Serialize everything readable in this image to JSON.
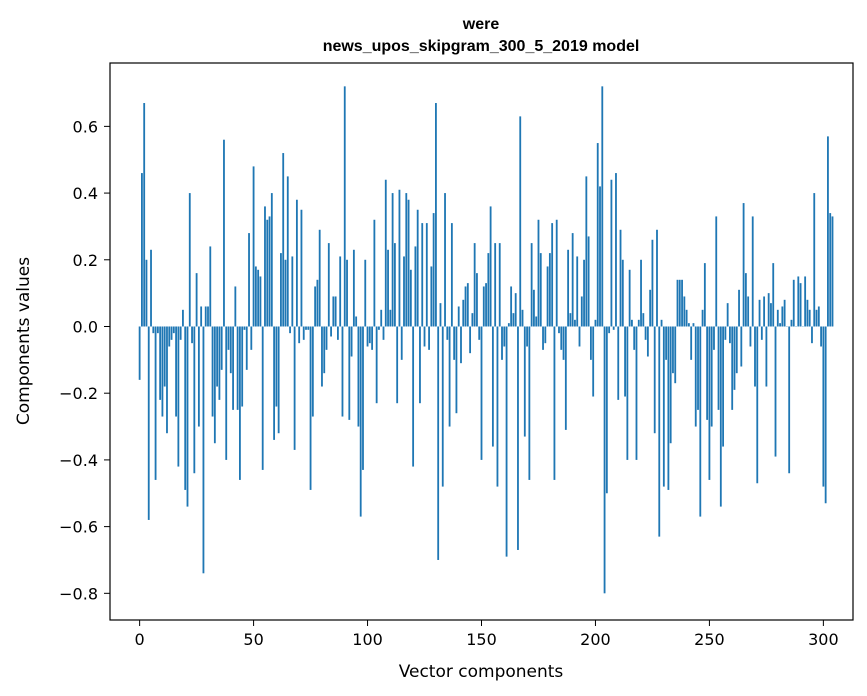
{
  "chart_data": {
    "type": "bar",
    "title_lines": [
      "were",
      "news_upos_skipgram_300_5_2019 model"
    ],
    "xlabel": "Vector components",
    "ylabel": "Components values",
    "xlim": [
      -13,
      313
    ],
    "ylim": [
      -0.88,
      0.79
    ],
    "xticks": [
      0,
      50,
      100,
      150,
      200,
      250,
      300
    ],
    "xtick_labels": [
      "0",
      "50",
      "100",
      "150",
      "200",
      "250",
      "300"
    ],
    "yticks": [
      -0.8,
      -0.6,
      -0.4,
      -0.2,
      0.0,
      0.2,
      0.4,
      0.6
    ],
    "ytick_labels": [
      "−0.8",
      "−0.6",
      "−0.4",
      "−0.2",
      "0.0",
      "0.2",
      "0.4",
      "0.6"
    ],
    "bar_color": "#1f77b4",
    "values": [
      -0.16,
      0.46,
      0.67,
      0.2,
      -0.58,
      0.23,
      -0.02,
      -0.46,
      -0.02,
      -0.22,
      -0.27,
      -0.18,
      -0.32,
      -0.06,
      -0.04,
      -0.02,
      -0.27,
      -0.42,
      -0.04,
      0.05,
      -0.49,
      -0.54,
      0.4,
      -0.05,
      -0.44,
      0.16,
      -0.3,
      0.06,
      -0.74,
      0.06,
      0.06,
      0.24,
      -0.27,
      -0.35,
      -0.18,
      -0.22,
      -0.13,
      0.56,
      -0.4,
      -0.07,
      -0.14,
      -0.25,
      0.12,
      -0.25,
      -0.46,
      -0.24,
      -0.01,
      -0.13,
      0.28,
      -0.07,
      0.48,
      0.18,
      0.17,
      0.15,
      -0.43,
      0.36,
      0.32,
      0.33,
      0.4,
      -0.34,
      -0.24,
      -0.32,
      0.22,
      0.52,
      0.2,
      0.45,
      -0.02,
      0.21,
      -0.37,
      0.38,
      -0.05,
      0.35,
      -0.04,
      -0.01,
      -0.01,
      -0.49,
      -0.27,
      0.12,
      0.14,
      0.29,
      -0.18,
      -0.14,
      -0.07,
      0.25,
      -0.03,
      0.09,
      0.09,
      -0.04,
      0.21,
      -0.27,
      0.72,
      0.2,
      -0.28,
      -0.09,
      0.23,
      0.03,
      -0.3,
      -0.57,
      -0.43,
      0.2,
      -0.06,
      -0.05,
      -0.07,
      0.32,
      -0.23,
      -0.01,
      0.05,
      -0.04,
      0.44,
      0.23,
      0.05,
      0.4,
      0.25,
      -0.23,
      0.41,
      -0.1,
      0.21,
      0.4,
      0.38,
      0.17,
      -0.42,
      0.24,
      0.35,
      -0.23,
      0.31,
      -0.06,
      0.31,
      -0.07,
      0.18,
      0.34,
      0.67,
      -0.7,
      0.07,
      -0.48,
      0.4,
      -0.04,
      -0.3,
      0.31,
      -0.1,
      -0.26,
      0.06,
      -0.11,
      0.08,
      0.12,
      0.13,
      -0.08,
      0.04,
      0.25,
      0.16,
      -0.04,
      -0.4,
      0.12,
      0.13,
      0.22,
      0.36,
      -0.36,
      0.25,
      -0.48,
      0.25,
      -0.1,
      -0.06,
      -0.69,
      0.01,
      0.12,
      0.04,
      0.1,
      -0.67,
      0.63,
      0.05,
      -0.33,
      -0.06,
      -0.46,
      0.25,
      0.11,
      0.03,
      0.32,
      0.22,
      -0.07,
      -0.05,
      0.18,
      0.22,
      0.31,
      -0.46,
      0.32,
      -0.02,
      -0.07,
      -0.1,
      -0.31,
      0.23,
      0.04,
      0.28,
      0.02,
      0.21,
      -0.06,
      0.09,
      0.2,
      0.45,
      0.27,
      -0.1,
      -0.21,
      0.02,
      0.55,
      0.42,
      0.72,
      -0.8,
      -0.5,
      -0.02,
      0.44,
      -0.01,
      0.46,
      -0.22,
      0.29,
      0.2,
      -0.21,
      -0.4,
      0.17,
      0.02,
      -0.07,
      -0.4,
      0.02,
      0.2,
      0.04,
      -0.04,
      -0.09,
      0.11,
      0.26,
      -0.32,
      0.29,
      -0.63,
      0.02,
      -0.48,
      -0.1,
      -0.49,
      -0.35,
      -0.14,
      -0.17,
      0.14,
      0.14,
      0.14,
      0.09,
      0.05,
      0.01,
      -0.1,
      0.01,
      -0.3,
      -0.25,
      -0.57,
      0.05,
      0.19,
      -0.28,
      -0.46,
      -0.3,
      -0.07,
      0.33,
      -0.25,
      -0.54,
      -0.36,
      -0.04,
      0.07,
      -0.05,
      -0.25,
      -0.19,
      -0.14,
      0.11,
      -0.12,
      0.37,
      0.16,
      0.09,
      -0.06,
      0.33,
      -0.18,
      -0.47,
      0.08,
      -0.04,
      0.09,
      -0.18,
      0.1,
      0.07,
      0.19,
      -0.39,
      0.05,
      0.01,
      0.06,
      0.08,
      0.0,
      -0.44,
      0.02,
      0.14,
      0.0,
      0.15,
      0.13,
      0.0,
      0.15,
      0.08,
      0.05,
      -0.05,
      0.4,
      0.05,
      0.06,
      -0.06,
      -0.48,
      -0.53,
      0.57,
      0.34,
      0.33
    ]
  }
}
